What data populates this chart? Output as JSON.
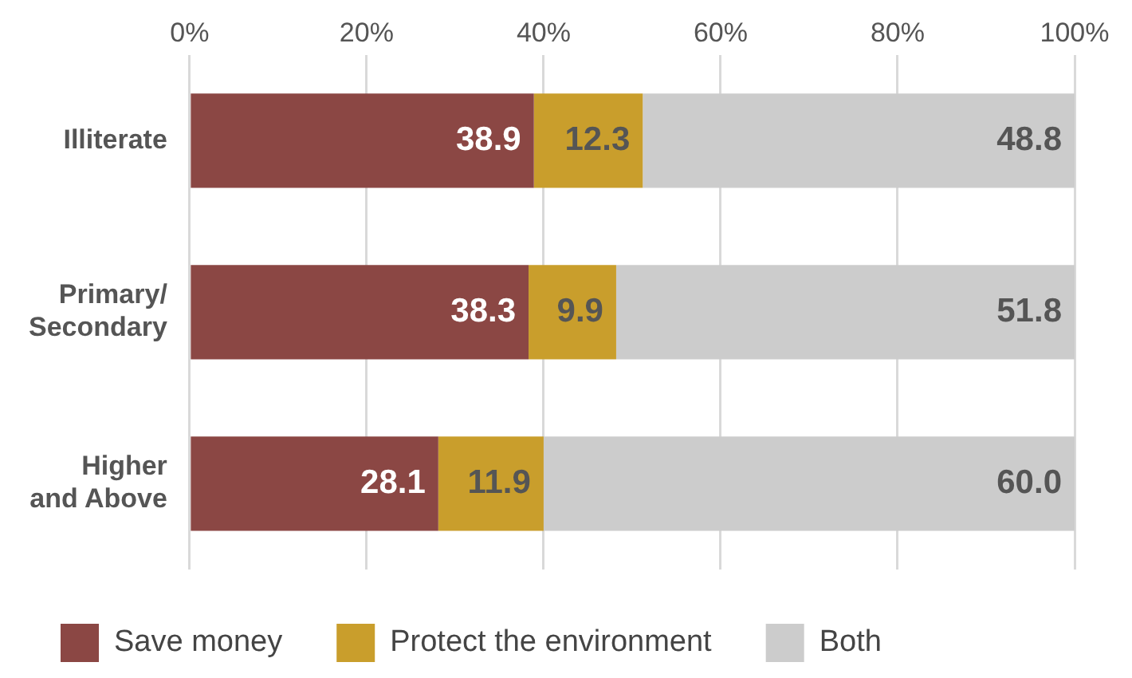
{
  "chart_data": {
    "type": "bar",
    "orientation": "horizontal",
    "stacked": true,
    "categories": [
      "Illiterate",
      "Primary/ Secondary",
      "Higher and Above"
    ],
    "series": [
      {
        "name": "Save money",
        "color": "#8b4744",
        "values": [
          38.9,
          38.3,
          28.1
        ],
        "value_labels": [
          "38.9",
          "38.3",
          "28.1"
        ]
      },
      {
        "name": "Protect the environment",
        "color": "#c99e2c",
        "values": [
          12.3,
          9.9,
          11.9
        ],
        "value_labels": [
          "12.3",
          "9.9",
          "11.9"
        ]
      },
      {
        "name": "Both",
        "color": "#cccccc",
        "values": [
          48.8,
          51.8,
          60.0
        ],
        "value_labels": [
          "48.8",
          "51.8",
          "60.0"
        ]
      }
    ],
    "xlim": [
      0,
      100
    ],
    "xticks": [
      {
        "value": 0,
        "label": "0%"
      },
      {
        "value": 20,
        "label": "20%"
      },
      {
        "value": 40,
        "label": "40%"
      },
      {
        "value": 60,
        "label": "60%"
      },
      {
        "value": 80,
        "label": "80%"
      },
      {
        "value": 100,
        "label": "100%"
      }
    ],
    "grid": "x",
    "legend": "bottom"
  }
}
